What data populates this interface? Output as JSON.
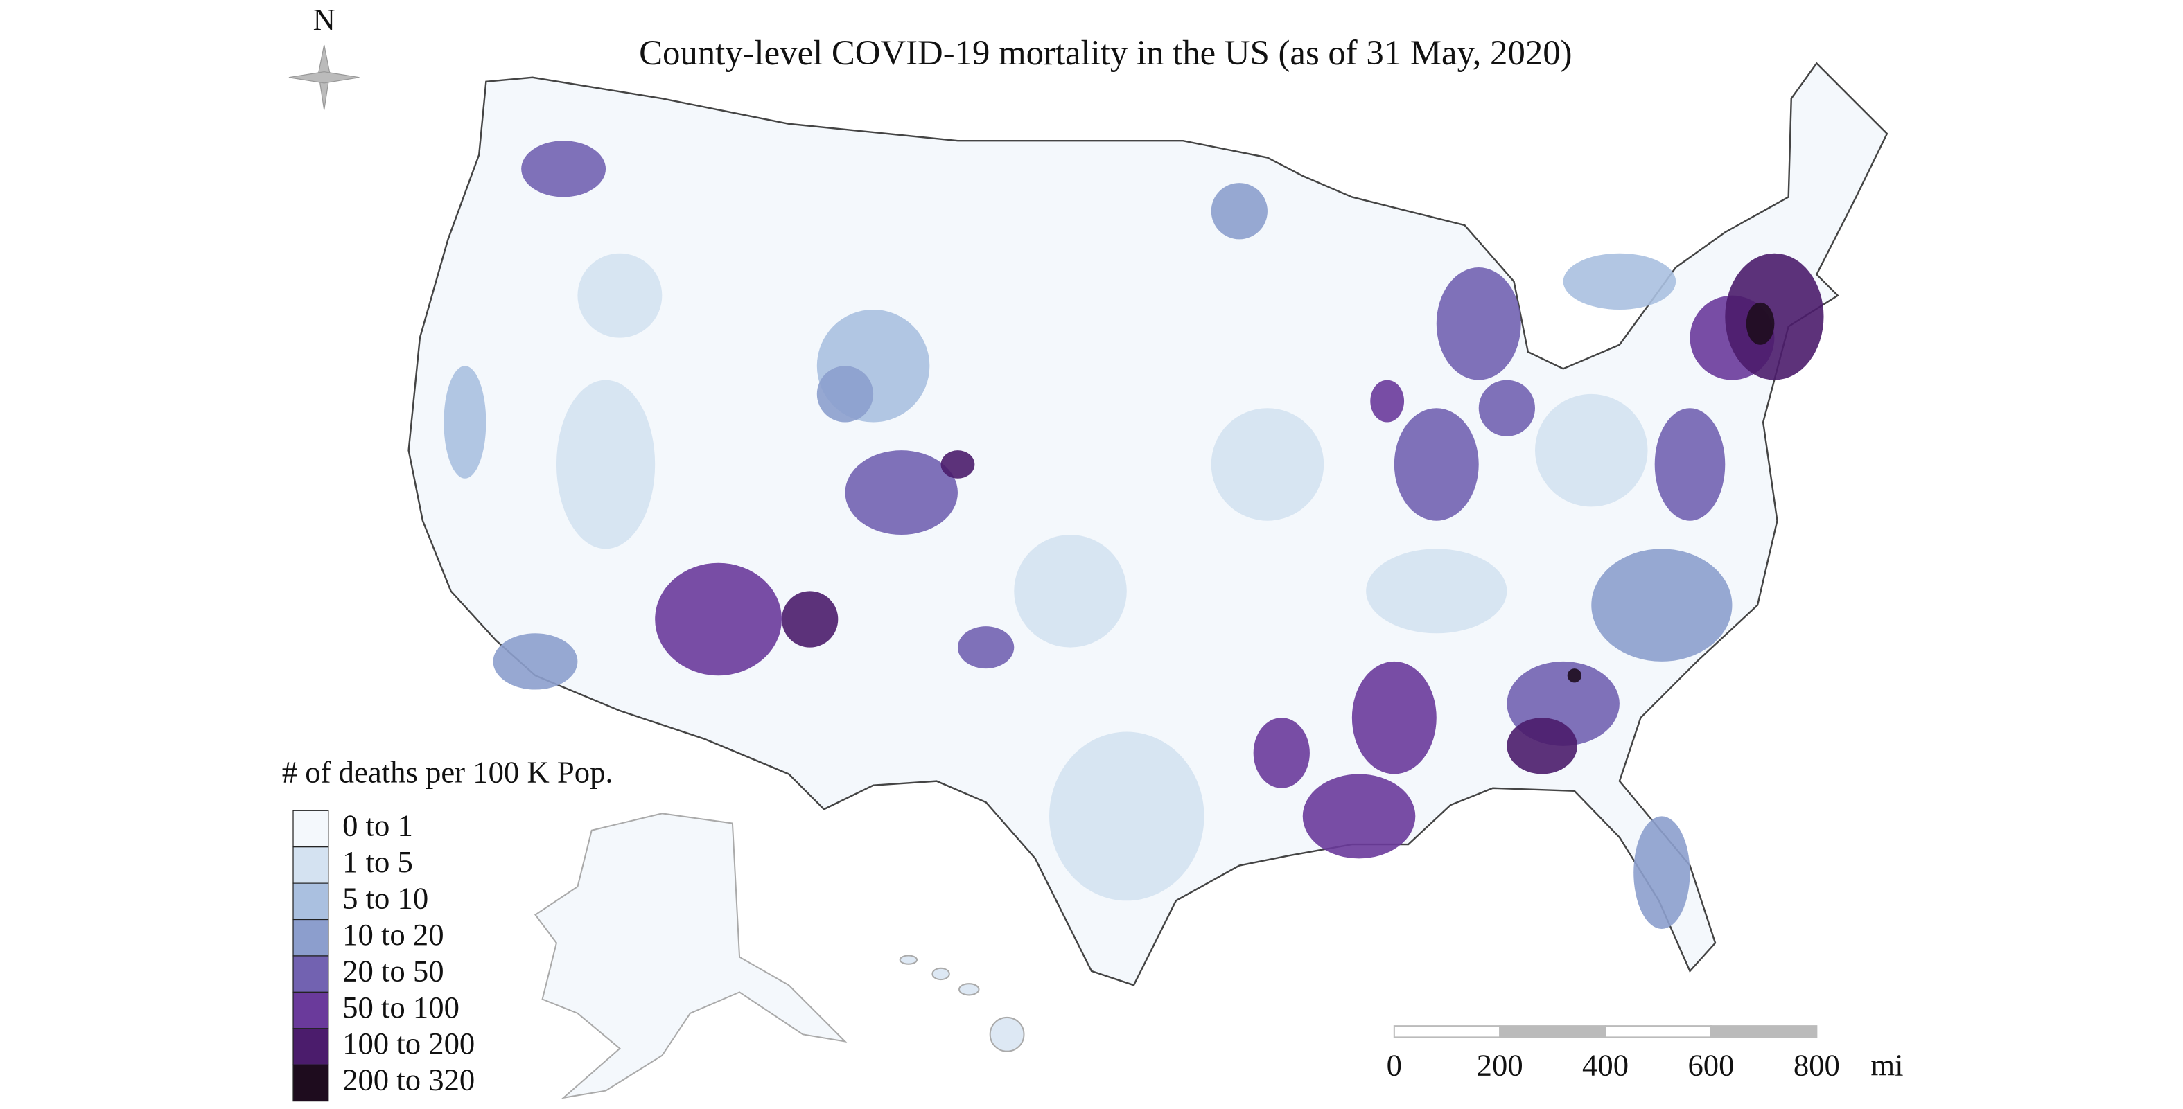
{
  "title": "County-level COVID-19 mortality in the US (as of 31 May, 2020)",
  "compass": {
    "label": "N"
  },
  "legend": {
    "title": "# of deaths per 100 K Pop.",
    "items": [
      {
        "label": "0 to 1",
        "color": "#f4f8fc"
      },
      {
        "label": "1 to 5",
        "color": "#d4e2f1"
      },
      {
        "label": "5 to 10",
        "color": "#aac0e0"
      },
      {
        "label": "10 to 20",
        "color": "#8c9ecd"
      },
      {
        "label": "20 to 50",
        "color": "#7262b1"
      },
      {
        "label": "50 to 100",
        "color": "#6a3a9b"
      },
      {
        "label": "100 to 200",
        "color": "#4b1c6c"
      },
      {
        "label": "200 to 320",
        "color": "#1e0c1e"
      }
    ]
  },
  "scale_bar": {
    "ticks": [
      0,
      200,
      400,
      600,
      800
    ],
    "unit": "mi"
  }
}
